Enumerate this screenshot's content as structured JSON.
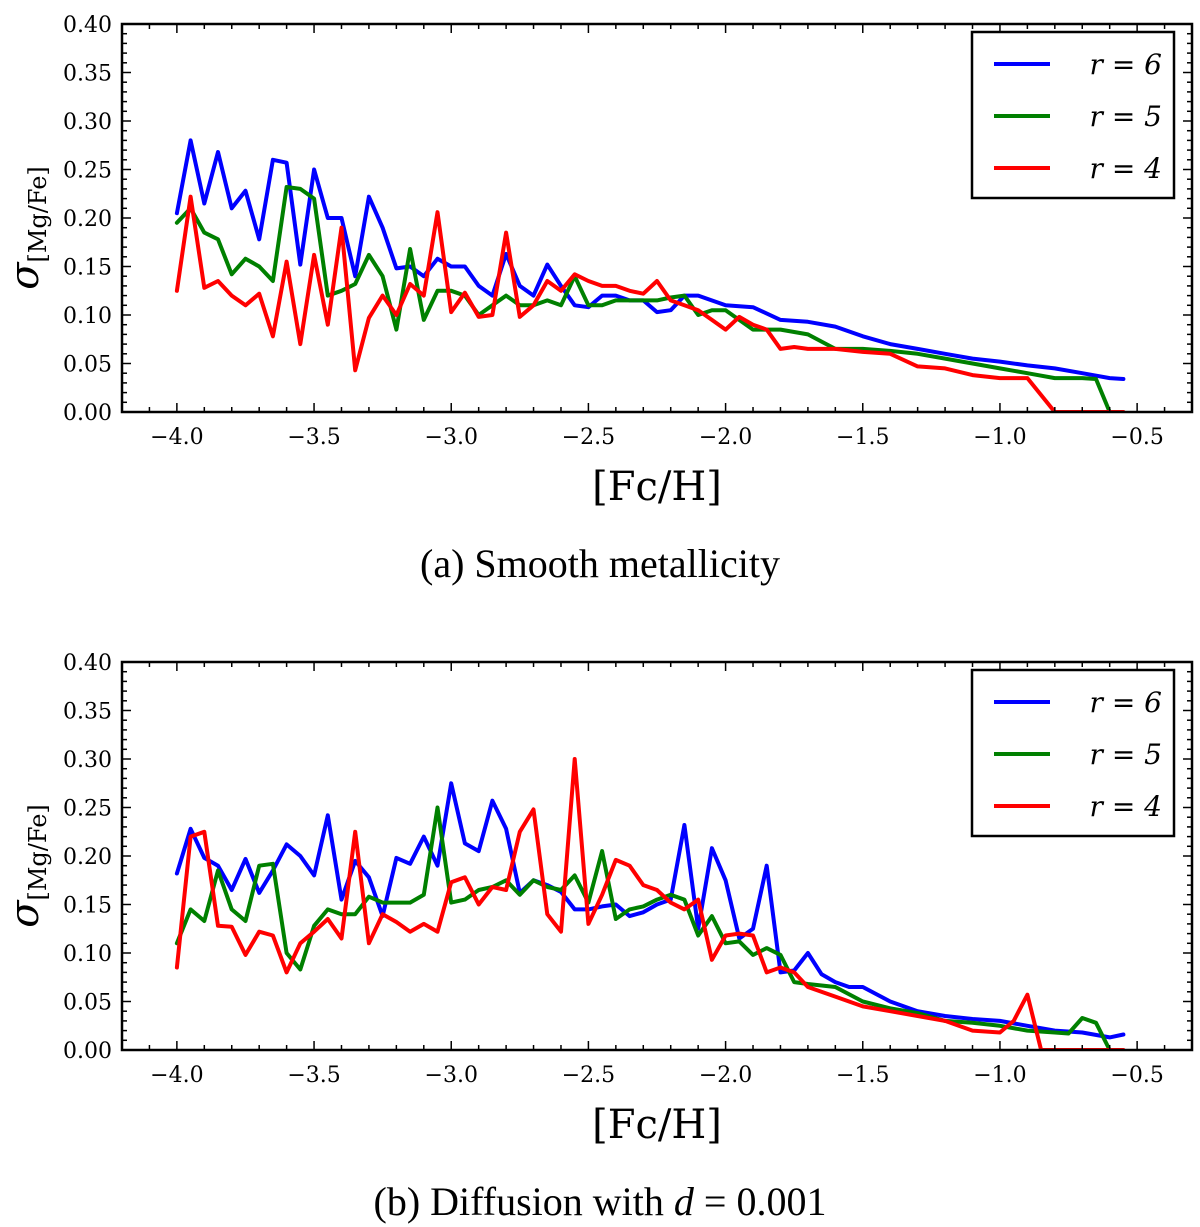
{
  "chart_data": [
    {
      "type": "line",
      "caption": "(a) Smooth metallicity",
      "xlabel": "[Fc/H]",
      "ylabel": "σ[Mg/Fe]",
      "xlim": [
        -4.2,
        -0.3
      ],
      "ylim": [
        0.0,
        0.4
      ],
      "xticks": [
        -4.0,
        -3.5,
        -3.0,
        -2.5,
        -2.0,
        -1.5,
        -1.0,
        -0.5
      ],
      "xtick_labels": [
        "−4.0",
        "−3.5",
        "−3.0",
        "−2.5",
        "−2.0",
        "−1.5",
        "−1.0",
        "−0.5"
      ],
      "yticks": [
        0.0,
        0.05,
        0.1,
        0.15,
        0.2,
        0.25,
        0.3,
        0.35,
        0.4
      ],
      "ytick_labels": [
        "0.00",
        "0.05",
        "0.10",
        "0.15",
        "0.20",
        "0.25",
        "0.30",
        "0.35",
        "0.40"
      ],
      "grid": false,
      "legend_position": "top-right",
      "series": [
        {
          "name": "r = 6",
          "color": "#0000ff",
          "x": [
            -4.0,
            -3.95,
            -3.9,
            -3.85,
            -3.8,
            -3.75,
            -3.7,
            -3.65,
            -3.6,
            -3.55,
            -3.5,
            -3.45,
            -3.4,
            -3.35,
            -3.3,
            -3.25,
            -3.2,
            -3.15,
            -3.1,
            -3.05,
            -3.0,
            -2.95,
            -2.9,
            -2.85,
            -2.8,
            -2.75,
            -2.7,
            -2.65,
            -2.6,
            -2.55,
            -2.5,
            -2.45,
            -2.4,
            -2.35,
            -2.3,
            -2.25,
            -2.2,
            -2.15,
            -2.1,
            -2.0,
            -1.9,
            -1.8,
            -1.7,
            -1.6,
            -1.5,
            -1.4,
            -1.3,
            -1.2,
            -1.1,
            -1.0,
            -0.9,
            -0.8,
            -0.7,
            -0.6,
            -0.55
          ],
          "y": [
            0.205,
            0.28,
            0.215,
            0.268,
            0.21,
            0.228,
            0.178,
            0.26,
            0.257,
            0.152,
            0.25,
            0.2,
            0.2,
            0.14,
            0.222,
            0.19,
            0.148,
            0.15,
            0.14,
            0.158,
            0.15,
            0.15,
            0.13,
            0.12,
            0.163,
            0.13,
            0.12,
            0.152,
            0.13,
            0.11,
            0.108,
            0.12,
            0.12,
            0.115,
            0.115,
            0.103,
            0.105,
            0.12,
            0.12,
            0.11,
            0.108,
            0.095,
            0.093,
            0.088,
            0.078,
            0.07,
            0.065,
            0.06,
            0.055,
            0.052,
            0.048,
            0.045,
            0.04,
            0.035,
            0.034
          ]
        },
        {
          "name": "r = 5",
          "color": "#008000",
          "x": [
            -4.0,
            -3.95,
            -3.9,
            -3.85,
            -3.8,
            -3.75,
            -3.7,
            -3.65,
            -3.6,
            -3.55,
            -3.5,
            -3.45,
            -3.4,
            -3.35,
            -3.3,
            -3.25,
            -3.2,
            -3.15,
            -3.1,
            -3.05,
            -3.0,
            -2.95,
            -2.9,
            -2.85,
            -2.8,
            -2.75,
            -2.7,
            -2.65,
            -2.6,
            -2.55,
            -2.5,
            -2.45,
            -2.4,
            -2.35,
            -2.3,
            -2.25,
            -2.2,
            -2.15,
            -2.1,
            -2.05,
            -2.0,
            -1.9,
            -1.8,
            -1.7,
            -1.6,
            -1.5,
            -1.4,
            -1.3,
            -1.2,
            -1.1,
            -1.0,
            -0.9,
            -0.8,
            -0.7,
            -0.65,
            -0.6
          ],
          "y": [
            0.195,
            0.21,
            0.185,
            0.178,
            0.142,
            0.158,
            0.15,
            0.135,
            0.232,
            0.23,
            0.22,
            0.12,
            0.125,
            0.132,
            0.162,
            0.14,
            0.085,
            0.168,
            0.095,
            0.125,
            0.125,
            0.12,
            0.1,
            0.11,
            0.12,
            0.11,
            0.11,
            0.115,
            0.11,
            0.14,
            0.11,
            0.11,
            0.115,
            0.115,
            0.115,
            0.115,
            0.118,
            0.12,
            0.1,
            0.105,
            0.105,
            0.085,
            0.085,
            0.08,
            0.065,
            0.065,
            0.063,
            0.06,
            0.055,
            0.05,
            0.045,
            0.04,
            0.035,
            0.035,
            0.034,
            0.0
          ]
        },
        {
          "name": "r = 4",
          "color": "#ff0000",
          "x": [
            -4.0,
            -3.95,
            -3.9,
            -3.85,
            -3.8,
            -3.75,
            -3.7,
            -3.65,
            -3.6,
            -3.55,
            -3.5,
            -3.45,
            -3.4,
            -3.35,
            -3.3,
            -3.25,
            -3.2,
            -3.15,
            -3.1,
            -3.05,
            -3.0,
            -2.95,
            -2.9,
            -2.85,
            -2.8,
            -2.75,
            -2.7,
            -2.65,
            -2.6,
            -2.55,
            -2.5,
            -2.45,
            -2.4,
            -2.35,
            -2.3,
            -2.25,
            -2.2,
            -2.15,
            -2.1,
            -2.05,
            -2.0,
            -1.95,
            -1.9,
            -1.85,
            -1.8,
            -1.75,
            -1.7,
            -1.6,
            -1.5,
            -1.4,
            -1.3,
            -1.2,
            -1.1,
            -1.0,
            -0.9,
            -0.8,
            -0.7,
            -0.6,
            -0.55
          ],
          "y": [
            0.125,
            0.222,
            0.128,
            0.135,
            0.12,
            0.11,
            0.122,
            0.078,
            0.155,
            0.07,
            0.162,
            0.09,
            0.19,
            0.043,
            0.097,
            0.12,
            0.1,
            0.132,
            0.12,
            0.206,
            0.103,
            0.123,
            0.098,
            0.1,
            0.185,
            0.098,
            0.11,
            0.135,
            0.125,
            0.142,
            0.135,
            0.13,
            0.13,
            0.125,
            0.122,
            0.135,
            0.115,
            0.11,
            0.105,
            0.095,
            0.085,
            0.098,
            0.09,
            0.085,
            0.065,
            0.067,
            0.065,
            0.065,
            0.062,
            0.06,
            0.047,
            0.045,
            0.038,
            0.035,
            0.035,
            0.0,
            0.0,
            0.0,
            0.0
          ]
        }
      ]
    },
    {
      "type": "line",
      "caption": "(b) Diffusion with d = 0.001",
      "xlabel": "[Fc/H]",
      "ylabel": "σ[Mg/Fe]",
      "xlim": [
        -4.2,
        -0.3
      ],
      "ylim": [
        0.0,
        0.4
      ],
      "xticks": [
        -4.0,
        -3.5,
        -3.0,
        -2.5,
        -2.0,
        -1.5,
        -1.0,
        -0.5
      ],
      "xtick_labels": [
        "−4.0",
        "−3.5",
        "−3.0",
        "−2.5",
        "−2.0",
        "−1.5",
        "−1.0",
        "−0.5"
      ],
      "yticks": [
        0.0,
        0.05,
        0.1,
        0.15,
        0.2,
        0.25,
        0.3,
        0.35,
        0.4
      ],
      "ytick_labels": [
        "0.00",
        "0.05",
        "0.10",
        "0.15",
        "0.20",
        "0.25",
        "0.30",
        "0.35",
        "0.40"
      ],
      "grid": false,
      "legend_position": "top-right",
      "series": [
        {
          "name": "r = 6",
          "color": "#0000ff",
          "x": [
            -4.0,
            -3.95,
            -3.9,
            -3.85,
            -3.8,
            -3.75,
            -3.7,
            -3.65,
            -3.6,
            -3.55,
            -3.5,
            -3.45,
            -3.4,
            -3.35,
            -3.3,
            -3.25,
            -3.2,
            -3.15,
            -3.1,
            -3.05,
            -3.0,
            -2.95,
            -2.9,
            -2.85,
            -2.8,
            -2.75,
            -2.7,
            -2.65,
            -2.6,
            -2.55,
            -2.5,
            -2.45,
            -2.4,
            -2.35,
            -2.3,
            -2.25,
            -2.2,
            -2.15,
            -2.1,
            -2.05,
            -2.0,
            -1.95,
            -1.9,
            -1.85,
            -1.8,
            -1.75,
            -1.7,
            -1.65,
            -1.6,
            -1.55,
            -1.5,
            -1.4,
            -1.3,
            -1.2,
            -1.1,
            -1.0,
            -0.9,
            -0.8,
            -0.7,
            -0.6,
            -0.55
          ],
          "y": [
            0.182,
            0.228,
            0.198,
            0.19,
            0.165,
            0.197,
            0.162,
            0.185,
            0.212,
            0.2,
            0.18,
            0.242,
            0.155,
            0.195,
            0.178,
            0.138,
            0.198,
            0.192,
            0.22,
            0.19,
            0.275,
            0.213,
            0.205,
            0.257,
            0.228,
            0.162,
            0.175,
            0.17,
            0.163,
            0.145,
            0.145,
            0.148,
            0.15,
            0.138,
            0.142,
            0.15,
            0.155,
            0.232,
            0.125,
            0.208,
            0.175,
            0.115,
            0.125,
            0.19,
            0.08,
            0.082,
            0.1,
            0.078,
            0.07,
            0.065,
            0.065,
            0.05,
            0.04,
            0.035,
            0.032,
            0.03,
            0.025,
            0.02,
            0.018,
            0.013,
            0.016
          ]
        },
        {
          "name": "r = 5",
          "color": "#008000",
          "x": [
            -4.0,
            -3.95,
            -3.9,
            -3.85,
            -3.8,
            -3.75,
            -3.7,
            -3.65,
            -3.6,
            -3.55,
            -3.5,
            -3.45,
            -3.4,
            -3.35,
            -3.3,
            -3.25,
            -3.2,
            -3.15,
            -3.1,
            -3.05,
            -3.0,
            -2.95,
            -2.9,
            -2.85,
            -2.8,
            -2.75,
            -2.7,
            -2.65,
            -2.6,
            -2.55,
            -2.5,
            -2.45,
            -2.4,
            -2.35,
            -2.3,
            -2.25,
            -2.2,
            -2.15,
            -2.1,
            -2.05,
            -2.0,
            -1.95,
            -1.9,
            -1.85,
            -1.8,
            -1.75,
            -1.7,
            -1.6,
            -1.5,
            -1.4,
            -1.3,
            -1.2,
            -1.1,
            -1.0,
            -0.9,
            -0.8,
            -0.75,
            -0.7,
            -0.65,
            -0.6
          ],
          "y": [
            0.11,
            0.145,
            0.133,
            0.185,
            0.145,
            0.133,
            0.19,
            0.192,
            0.1,
            0.083,
            0.128,
            0.145,
            0.14,
            0.14,
            0.158,
            0.152,
            0.152,
            0.152,
            0.16,
            0.25,
            0.152,
            0.155,
            0.165,
            0.168,
            0.175,
            0.16,
            0.175,
            0.168,
            0.165,
            0.18,
            0.152,
            0.205,
            0.135,
            0.145,
            0.148,
            0.155,
            0.16,
            0.155,
            0.118,
            0.138,
            0.11,
            0.112,
            0.098,
            0.105,
            0.098,
            0.07,
            0.068,
            0.065,
            0.05,
            0.043,
            0.038,
            0.03,
            0.028,
            0.025,
            0.02,
            0.018,
            0.017,
            0.033,
            0.028,
            0.0
          ]
        },
        {
          "name": "r = 4",
          "color": "#ff0000",
          "x": [
            -4.0,
            -3.95,
            -3.9,
            -3.85,
            -3.8,
            -3.75,
            -3.7,
            -3.65,
            -3.6,
            -3.55,
            -3.5,
            -3.45,
            -3.4,
            -3.35,
            -3.3,
            -3.25,
            -3.2,
            -3.15,
            -3.1,
            -3.05,
            -3.0,
            -2.95,
            -2.9,
            -2.85,
            -2.8,
            -2.75,
            -2.7,
            -2.65,
            -2.6,
            -2.55,
            -2.5,
            -2.45,
            -2.4,
            -2.35,
            -2.3,
            -2.25,
            -2.2,
            -2.15,
            -2.1,
            -2.05,
            -2.0,
            -1.95,
            -1.9,
            -1.85,
            -1.8,
            -1.75,
            -1.7,
            -1.6,
            -1.5,
            -1.4,
            -1.3,
            -1.2,
            -1.1,
            -1.0,
            -0.95,
            -0.9,
            -0.85,
            -0.8,
            -0.7,
            -0.6,
            -0.55
          ],
          "y": [
            0.085,
            0.22,
            0.225,
            0.128,
            0.127,
            0.098,
            0.122,
            0.118,
            0.08,
            0.11,
            0.122,
            0.135,
            0.115,
            0.225,
            0.11,
            0.14,
            0.132,
            0.122,
            0.13,
            0.122,
            0.173,
            0.178,
            0.15,
            0.168,
            0.165,
            0.225,
            0.248,
            0.14,
            0.122,
            0.3,
            0.13,
            0.16,
            0.196,
            0.19,
            0.17,
            0.165,
            0.152,
            0.145,
            0.155,
            0.093,
            0.118,
            0.12,
            0.118,
            0.08,
            0.085,
            0.08,
            0.065,
            0.055,
            0.045,
            0.04,
            0.035,
            0.03,
            0.02,
            0.018,
            0.03,
            0.057,
            0.0,
            0.0,
            0.0,
            0.0,
            0.0
          ]
        }
      ]
    }
  ]
}
